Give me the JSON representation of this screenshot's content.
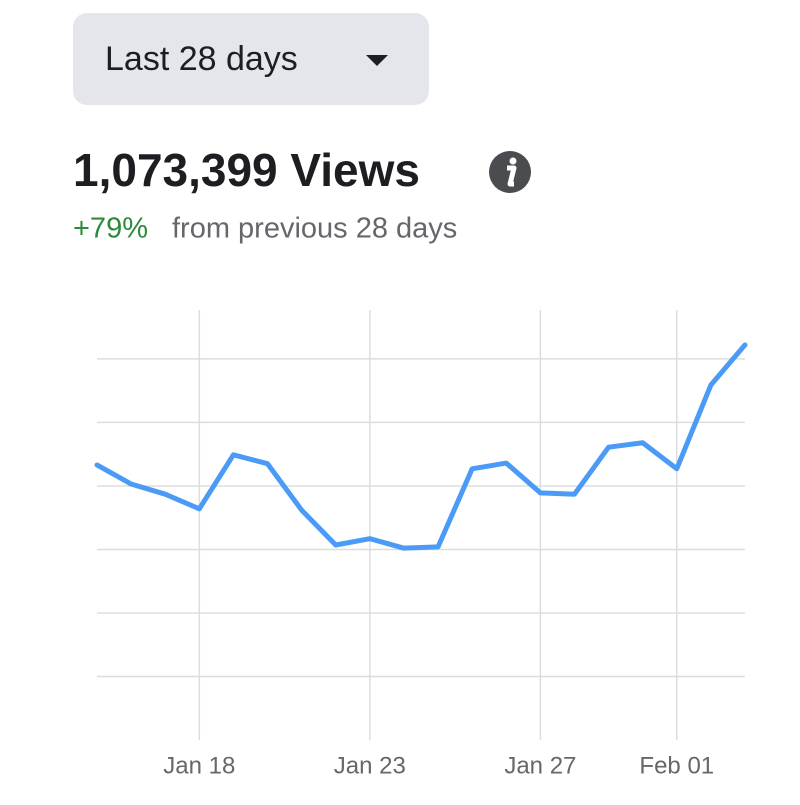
{
  "period_selector": "Last 28 days",
  "chart_data": {
    "type": "line",
    "title": "1,073,399 Views",
    "change": "+79%",
    "subtitle": "from previous 28 days",
    "categories": [
      null,
      null,
      null,
      "Jan 18",
      null,
      null,
      null,
      null,
      "Jan 23",
      null,
      null,
      null,
      null,
      "Jan 27",
      null,
      null,
      null,
      "Feb 01",
      null,
      null
    ],
    "series": [
      {
        "color": "#4b9bf6",
        "values": [
          4.33,
          4.03,
          3.87,
          3.64,
          4.49,
          4.35,
          3.62,
          3.07,
          3.17,
          3.02,
          3.04,
          4.27,
          4.36,
          3.89,
          3.87,
          4.61,
          4.68,
          4.27,
          5.59,
          6.22
        ]
      }
    ],
    "ylim": [
      0,
      6.77
    ],
    "yticks": [
      1,
      2,
      3,
      4,
      5,
      6
    ],
    "grid": true
  }
}
